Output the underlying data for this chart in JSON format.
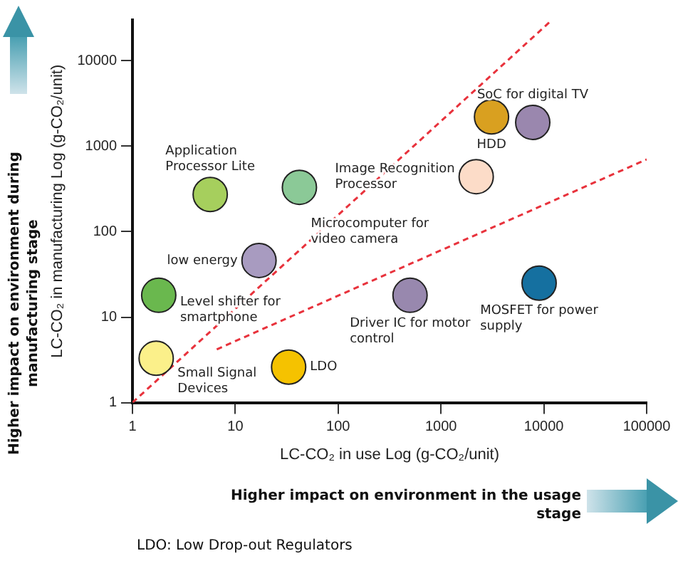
{
  "chart_data": {
    "type": "scatter",
    "xlabel": "LC-CO₂ in use Log (g-CO₂/unit)",
    "ylabel": "LC-CO₂ in manufacturing Log (g-CO₂/unit)",
    "log": "xy",
    "grid": false,
    "legend": false,
    "marker": "circle",
    "xlim": [
      1,
      100000
    ],
    "xticks": [
      1,
      10,
      100,
      1000,
      10000,
      100000
    ],
    "ylim": [
      1,
      30000
    ],
    "yticks": [
      1,
      10,
      100,
      1000,
      10000
    ],
    "series": [
      {
        "x": [
          5.7,
          42,
          17,
          1.8,
          1.7,
          33,
          500,
          9000,
          3100,
          7800,
          2200
        ],
        "values": [
          272,
          330,
          46,
          18,
          3.3,
          2.6,
          18,
          25,
          2200,
          1900,
          440
        ],
        "colors": [
          "#a6cf5d",
          "#8bc997",
          "#a89bc0",
          "#6ab84e",
          "#fbf08a",
          "#f5c200",
          "#9888ae",
          "#1570a0",
          "#d9a020",
          "#9a87ae",
          "#fcdcc8"
        ]
      },
      {
        "type": "line",
        "line_style": "dashed",
        "color": "#e8323c",
        "marker": "none",
        "x": [
          1,
          12000
        ],
        "values": [
          1,
          30000
        ]
      },
      {
        "type": "line",
        "line_style": "dashed",
        "color": "#e8323c",
        "marker": "none",
        "x": [
          6.6,
          100000
        ],
        "values": [
          4.2,
          700
        ]
      }
    ],
    "annotations": [
      {
        "text": "Application Processor Lite",
        "x": 5.7,
        "y": 272
      },
      {
        "text": "Microcomputer for video camera",
        "x": 42,
        "y": 330
      },
      {
        "text": "low energy",
        "x": 17,
        "y": 46
      },
      {
        "text": "Level shifter for smartphone",
        "x": 1.8,
        "y": 18
      },
      {
        "text": "Small Signal Devices",
        "x": 1.7,
        "y": 3.3
      },
      {
        "text": "LDO",
        "x": 33,
        "y": 2.6
      },
      {
        "text": "Driver IC for motor control",
        "x": 500,
        "y": 18
      },
      {
        "text": "MOSFET for power supply",
        "x": 9000,
        "y": 25
      },
      {
        "text": "HDD",
        "x": 3100,
        "y": 2200
      },
      {
        "text": "SoC for digital TV",
        "x": 7800,
        "y": 1900
      },
      {
        "text": "Image Recognition Processor",
        "x": 2200,
        "y": 440
      },
      "Higher impact on environment during manufacturing stage",
      "Higher impact on environment in the usage stage",
      "LDO: Low Drop-out Regulators"
    ]
  }
}
